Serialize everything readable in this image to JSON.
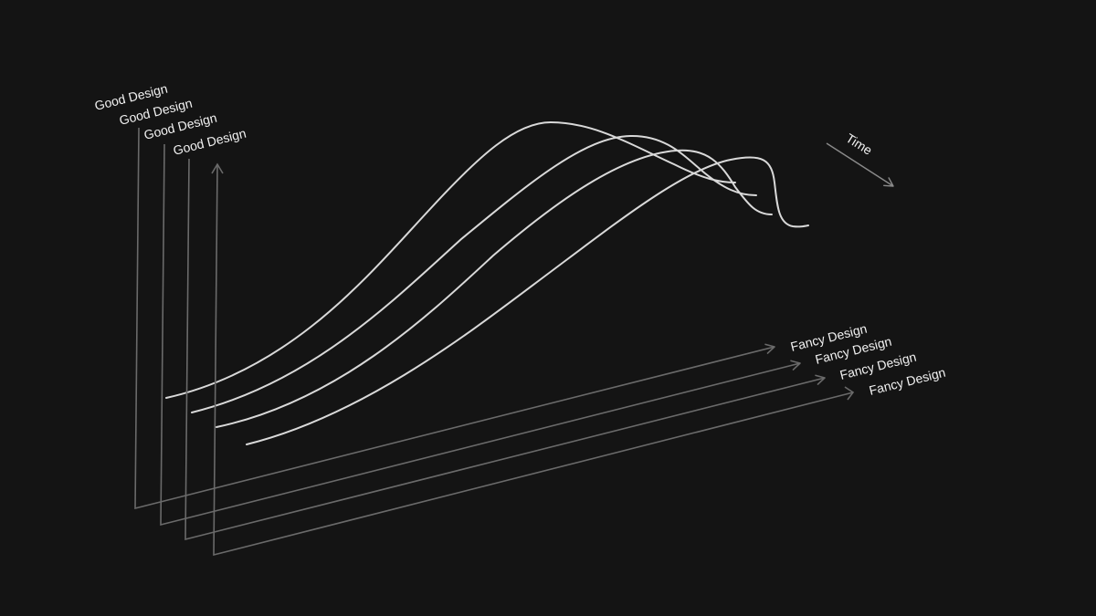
{
  "theme": {
    "background": "#141414",
    "axis_color": "#6a6a6a",
    "curve_color": "#d9d9d9",
    "time_axis_color": "#8a8a8a",
    "text_color": "#f2f2f2"
  },
  "layers": [
    {
      "y_label": "Good Design",
      "x_label": "Fancy Design"
    },
    {
      "y_label": "Good Design",
      "x_label": "Fancy Design"
    },
    {
      "y_label": "Good Design",
      "x_label": "Fancy Design"
    },
    {
      "y_label": "Good Design",
      "x_label": "Fancy Design"
    }
  ],
  "time_label": "Time"
}
